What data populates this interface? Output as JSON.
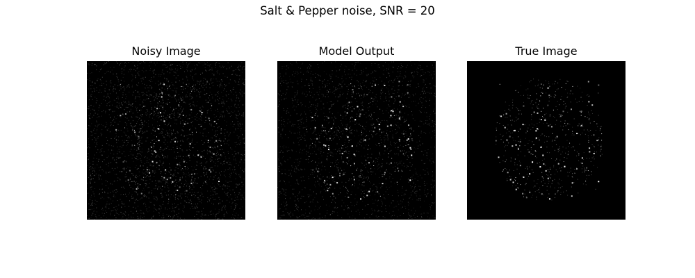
{
  "figure": {
    "title": "Salt & Pepper noise, SNR = 20",
    "background_color": "#ffffff",
    "panels": [
      {
        "title": "Noisy Image",
        "content": "noisy-speckle"
      },
      {
        "title": "Model Output",
        "content": "denoised-speckle"
      },
      {
        "title": "True Image",
        "content": "sparse-bright-points"
      }
    ]
  }
}
